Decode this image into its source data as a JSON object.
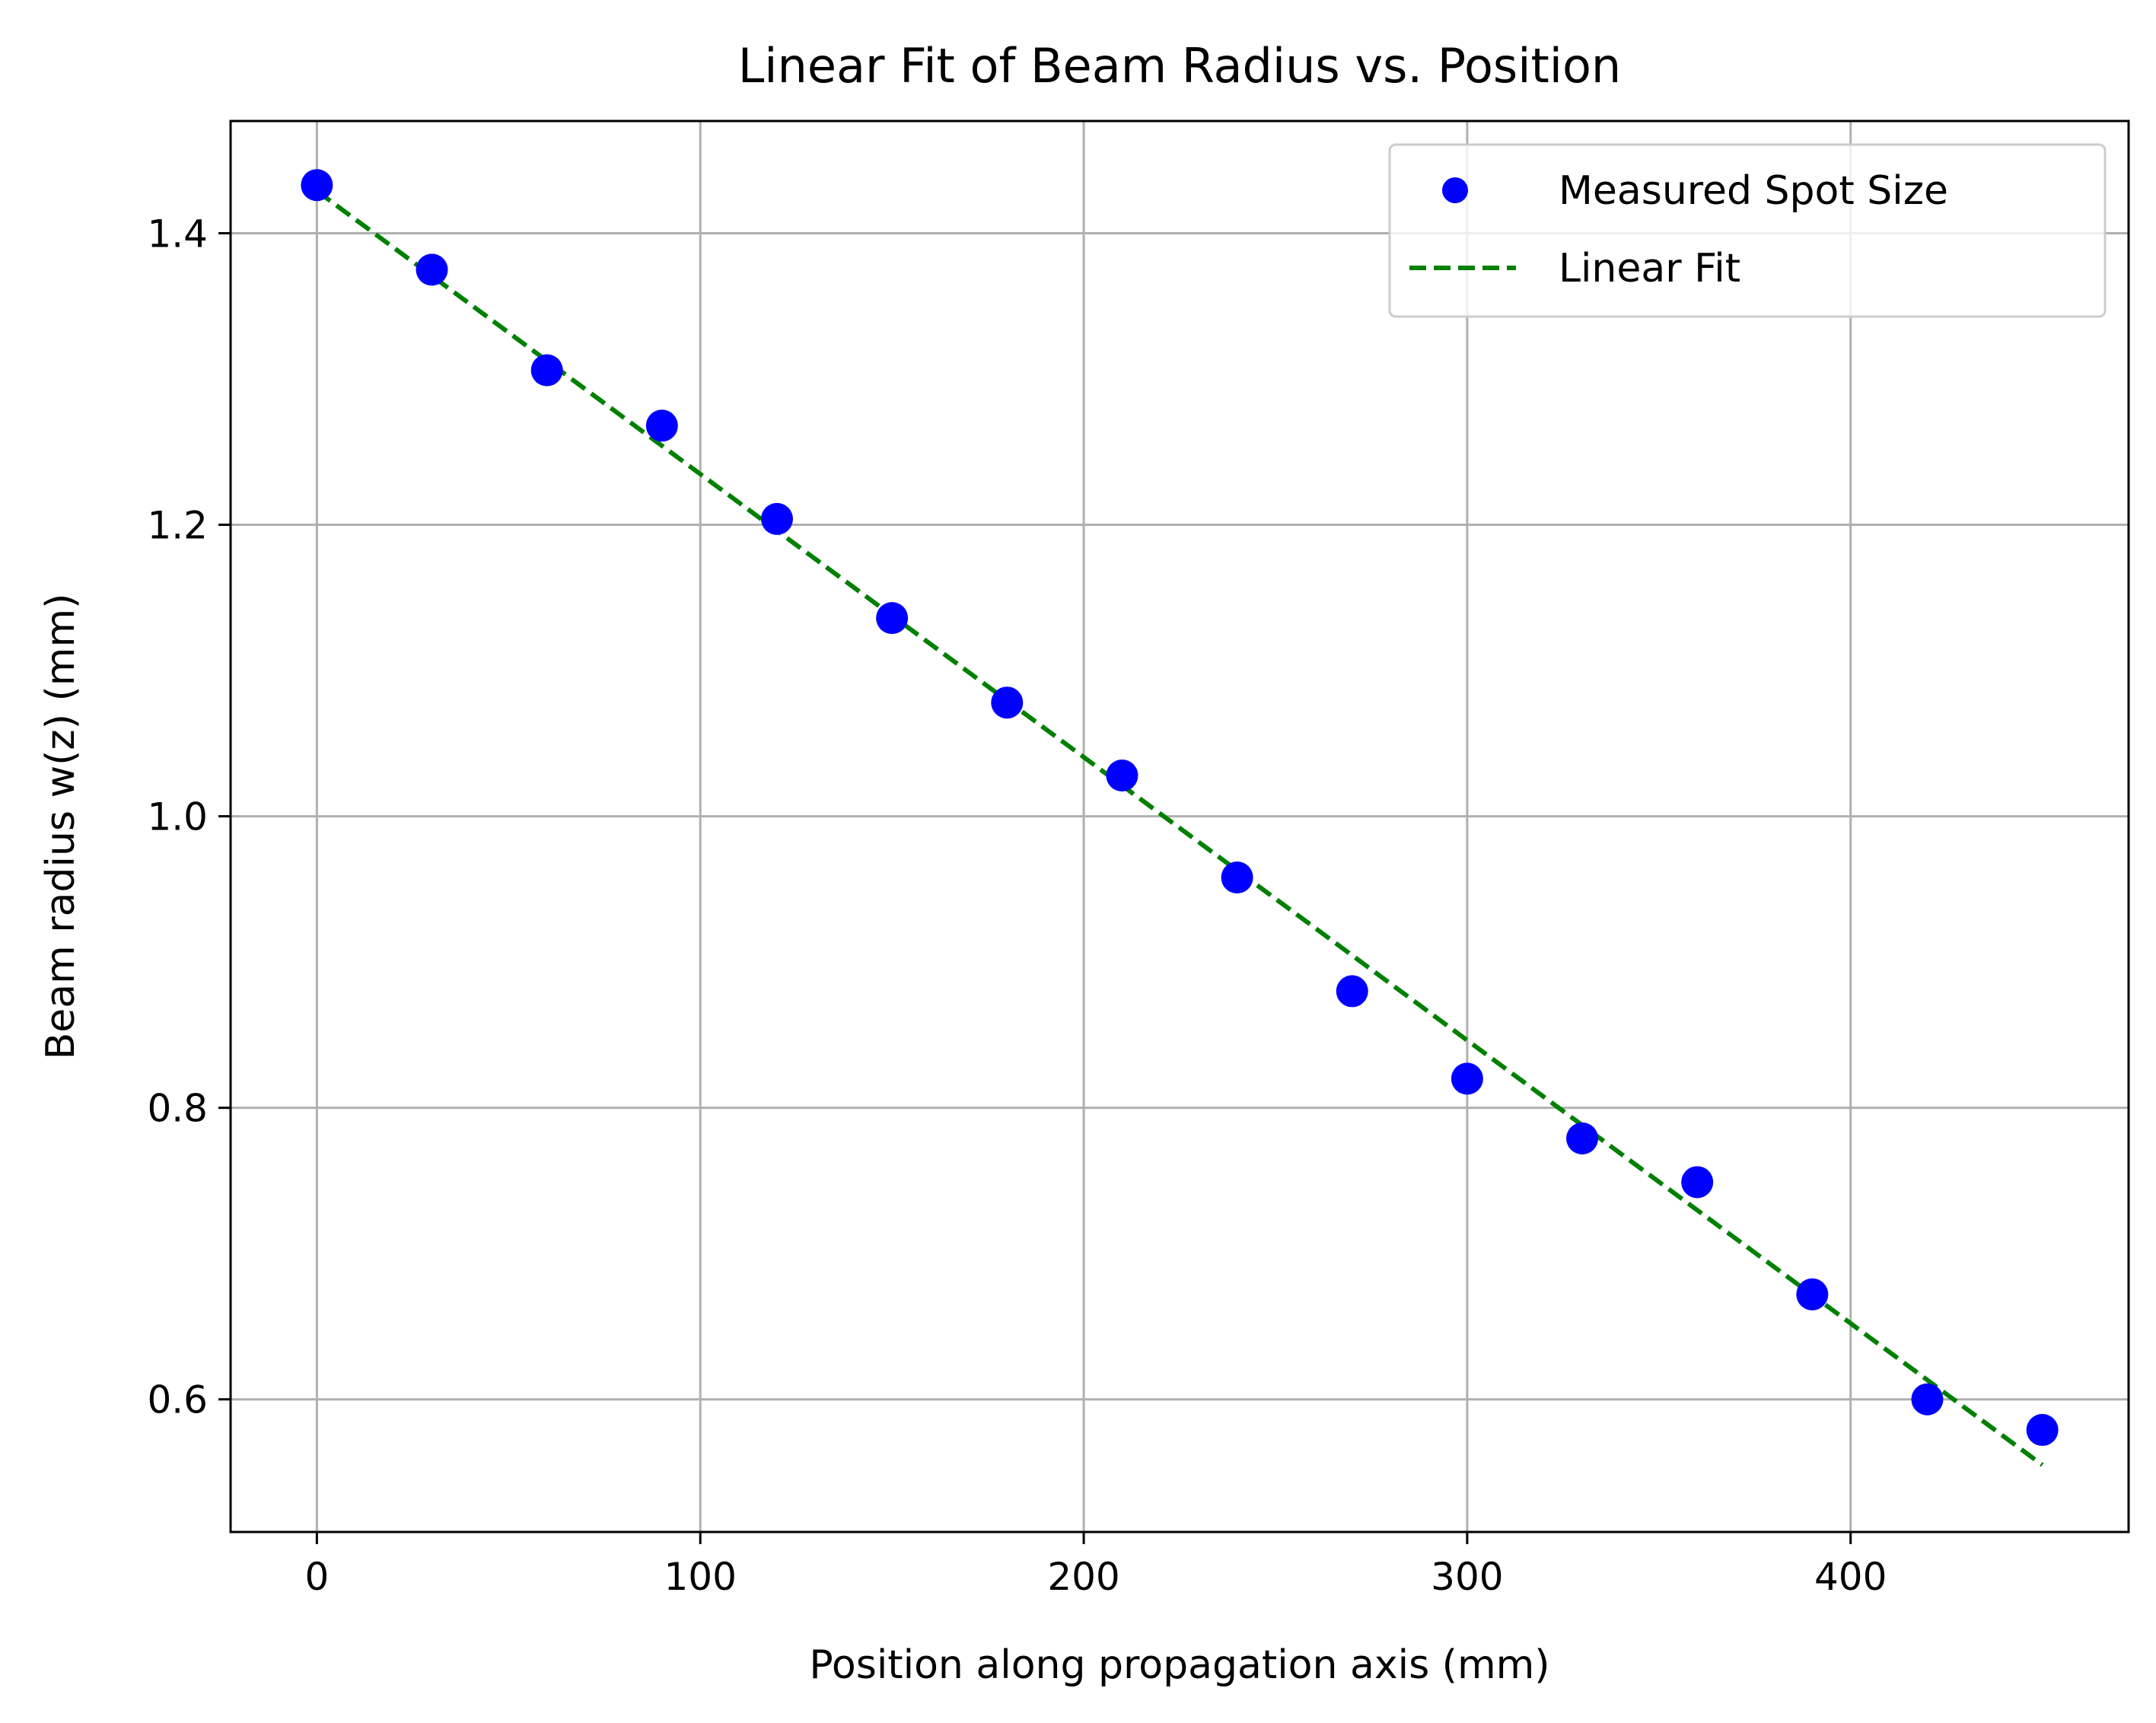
{
  "chart_data": {
    "type": "scatter",
    "title": "Linear Fit of Beam Radius vs. Position",
    "xlabel": "Position along propagation axis (mm)",
    "ylabel": "Beam radius w(z) (mm)",
    "xlim": [
      -22.5,
      472.5
    ],
    "ylim": [
      0.509,
      1.477
    ],
    "xticks": [
      0,
      100,
      200,
      300,
      400
    ],
    "xtick_labels": [
      "0",
      "100",
      "200",
      "300",
      "400"
    ],
    "yticks": [
      0.6,
      0.8,
      1.0,
      1.2,
      1.4
    ],
    "ytick_labels": [
      "0.6",
      "0.8",
      "1.0",
      "1.2",
      "1.4"
    ],
    "grid": true,
    "legend_position": "top-right",
    "series": [
      {
        "name": "Measured Spot Size",
        "kind": "scatter",
        "color": "#0000ff",
        "x": [
          0,
          30,
          60,
          90,
          120,
          150,
          180,
          210,
          240,
          270,
          300,
          330,
          360,
          390,
          420,
          450
        ],
        "y": [
          1.433,
          1.375,
          1.306,
          1.268,
          1.204,
          1.136,
          1.078,
          1.028,
          0.958,
          0.88,
          0.82,
          0.779,
          0.749,
          0.672,
          0.6,
          0.579
        ]
      },
      {
        "name": "Linear Fit",
        "kind": "line",
        "style": "dashed",
        "color": "#008000",
        "x": [
          0,
          450
        ],
        "y": [
          1.429,
          0.555
        ]
      }
    ]
  }
}
